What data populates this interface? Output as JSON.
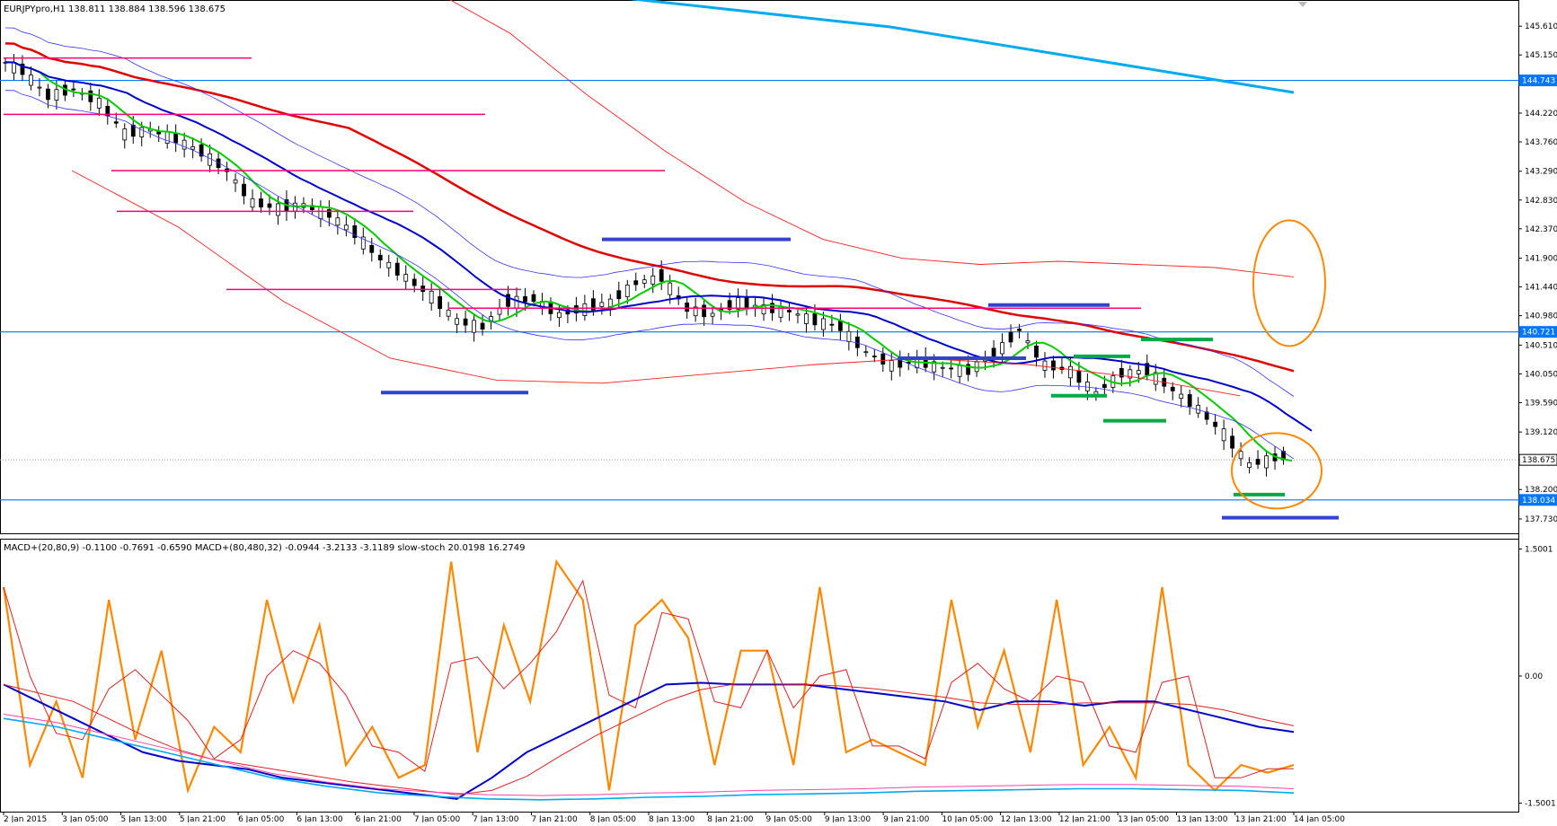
{
  "window": {
    "symbol_info": "EURJPYpro,H1  138.811 138.884 138.596 138.675",
    "indicator_info": "MACD+(20,80,9) -0.1100 -0.7691 -0.6590  MACD+(80,480,32) -0.0944 -3.2133 -3.1189  slow-stoch 20.0198 16.2749"
  },
  "colors": {
    "candle_body": "#000000",
    "bull_fill": "#ffffff",
    "ma_fast": "#00cc00",
    "ma_mid": "#0000cc",
    "ma_slow": "#e00000",
    "envelope_red": "#ff2020",
    "band_blue": "#3333ff",
    "ma_long": "#00aaee",
    "hline": "#0077ff",
    "resistance": "#ff0077",
    "support_blue": "#3344cc",
    "support_green": "#00aa44",
    "annotation": "#ff8800",
    "stoch_main": "#ff8800",
    "stoch_signal": "#dd2222",
    "macd_fast": "#0000cc",
    "macd_slow_main": "#00aaee",
    "macd_slow_signal": "#ff44aa"
  },
  "chart_data": [
    {
      "type": "candlestick",
      "title": "EURJPYpro,H1",
      "ohlc_last": {
        "open": 138.811,
        "high": 138.884,
        "low": 138.596,
        "close": 138.675
      },
      "ylim": [
        137.5,
        146.0
      ],
      "y_ticks": [
        "145.610",
        "145.150",
        "144.220",
        "143.760",
        "143.290",
        "142.830",
        "142.370",
        "141.900",
        "141.440",
        "140.980",
        "140.510",
        "140.050",
        "139.590",
        "139.120",
        "138.200",
        "137.730"
      ],
      "price_labels": [
        "144.743",
        "140.721",
        "138.675",
        "138.034"
      ],
      "x_ticks": [
        "2 Jan 2015",
        "3 Jan 05:00",
        "5 Jan 13:00",
        "5 Jan 21:00",
        "6 Jan 05:00",
        "6 Jan 13:00",
        "6 Jan 21:00",
        "7 Jan 05:00",
        "7 Jan 13:00",
        "7 Jan 21:00",
        "8 Jan 05:00",
        "8 Jan 13:00",
        "8 Jan 21:00",
        "9 Jan 05:00",
        "9 Jan 13:00",
        "9 Jan 21:00",
        "10 Jan 05:00",
        "12 Jan 13:00",
        "12 Jan 21:00",
        "13 Jan 05:00",
        "13 Jan 13:00",
        "13 Jan 21:00",
        "14 Jan 05:00"
      ],
      "close_path": [
        145.1,
        144.9,
        144.5,
        144.6,
        144.4,
        143.9,
        143.95,
        143.8,
        143.6,
        143.3,
        142.8,
        142.7,
        142.75,
        142.6,
        142.3,
        141.9,
        141.6,
        141.3,
        140.9,
        140.8,
        141.2,
        141.25,
        141.0,
        141.1,
        141.2,
        141.5,
        141.6,
        141.1,
        141.0,
        141.2,
        141.1,
        141.05,
        140.9,
        140.8,
        140.4,
        140.2,
        140.25,
        140.15,
        140.1,
        140.35,
        140.75,
        140.2,
        140.1,
        139.75,
        140.05,
        140.1,
        139.8,
        139.5,
        139.1,
        138.6,
        138.7
      ],
      "horizontal_levels": [
        144.743,
        140.721,
        138.034
      ],
      "resistance_lines": [
        145.1,
        144.2,
        143.3,
        142.65,
        141.4
      ],
      "support_lines_blue": [
        142.2,
        140.35,
        141.15,
        139.75,
        137.75
      ],
      "support_lines_green": [
        140.6,
        140.33,
        139.7,
        139.3,
        138.12
      ]
    },
    {
      "type": "line",
      "title": "MACD+(20,80,9) / MACD+(80,480,32) / slow-stoch",
      "ylim": [
        -1.6,
        1.6
      ],
      "y_ticks": [
        "1.5001",
        "0.00",
        "-1.5001"
      ],
      "series": [
        {
          "name": "slow-stoch",
          "values": [
            85,
            15,
            40,
            10,
            80,
            25,
            60,
            5,
            30,
            20,
            80,
            40,
            70,
            15,
            30,
            10,
            15,
            95,
            20,
            70,
            40,
            95,
            80,
            5,
            70,
            80,
            65,
            15,
            60,
            60,
            15,
            85,
            20,
            25,
            20,
            15,
            80,
            30,
            60,
            20,
            80,
            15,
            30,
            10,
            85,
            15,
            5,
            15,
            12,
            15
          ]
        },
        {
          "name": "MACD+(20,80,9)",
          "values": [
            -0.1,
            -0.3,
            -0.5,
            -0.7,
            -0.9,
            -1.0,
            -1.05,
            -1.1,
            -1.2,
            -1.25,
            -1.3,
            -1.35,
            -1.4,
            -1.45,
            -1.2,
            -0.9,
            -0.7,
            -0.5,
            -0.3,
            -0.1,
            -0.08,
            -0.1,
            -0.1,
            -0.1,
            -0.15,
            -0.2,
            -0.25,
            -0.3,
            -0.4,
            -0.3,
            -0.3,
            -0.35,
            -0.3,
            -0.3,
            -0.4,
            -0.5,
            -0.6,
            -0.66
          ]
        },
        {
          "name": "MACD+(80,480,32)",
          "values": [
            -0.5,
            -0.6,
            -0.75,
            -0.9,
            -1.05,
            -1.2,
            -1.3,
            -1.38,
            -1.42,
            -1.45,
            -1.46,
            -1.45,
            -1.43,
            -1.42,
            -1.4,
            -1.39,
            -1.38,
            -1.36,
            -1.35,
            -1.34,
            -1.33,
            -1.33,
            -1.34,
            -1.35,
            -1.38
          ]
        }
      ]
    }
  ]
}
